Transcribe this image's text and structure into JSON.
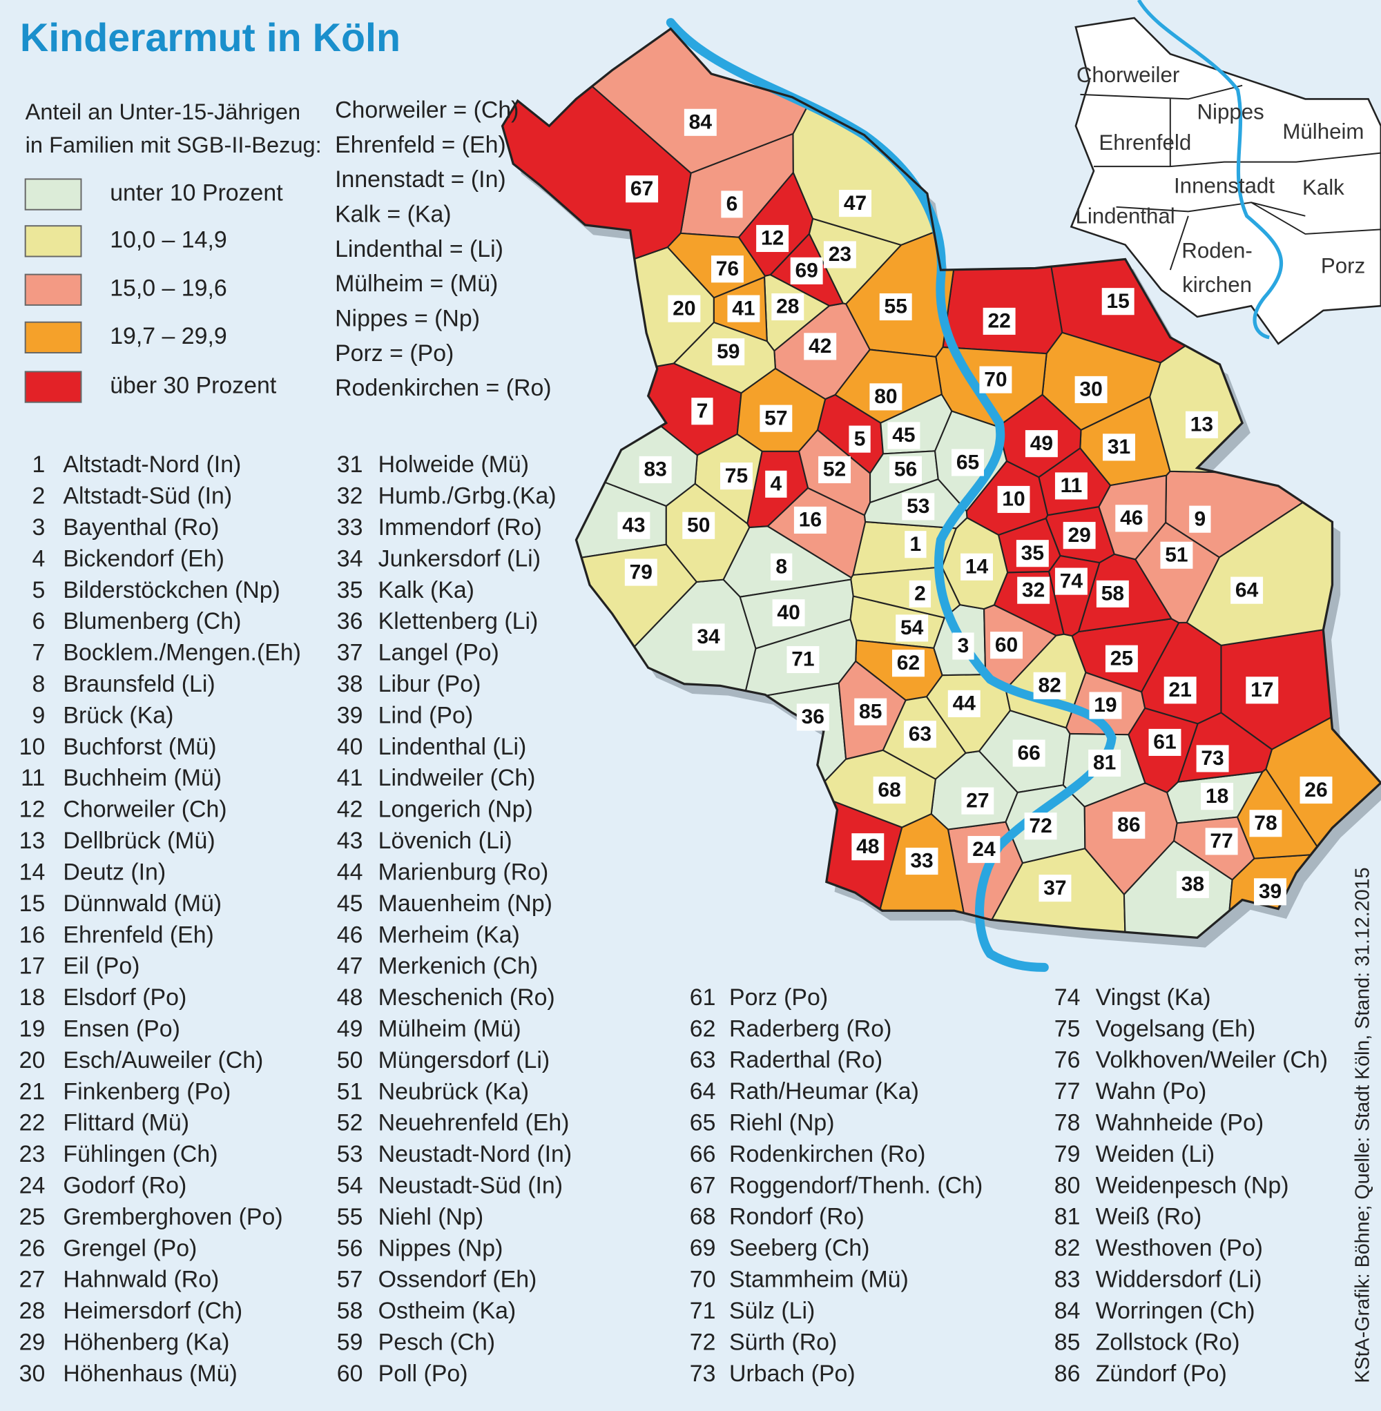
{
  "title": "Kinderarmut in Köln",
  "legend": {
    "heading": [
      "Anteil an Unter-15-Jährigen",
      "in Familien mit SGB-II-Bezug:"
    ],
    "items": [
      {
        "label": "unter 10 Prozent",
        "color": "#dcecd8"
      },
      {
        "label": "10,0 – 14,9",
        "color": "#ece79a"
      },
      {
        "label": "15,0 – 19,6",
        "color": "#f39a84"
      },
      {
        "label": "19,7 – 29,9",
        "color": "#f5a12a"
      },
      {
        "label": "über 30 Prozent",
        "color": "#e32227"
      }
    ]
  },
  "abbreviations": [
    "Chorweiler = (Ch)",
    "Ehrenfeld = (Eh)",
    "Innenstadt = (In)",
    "Kalk = (Ka)",
    "Lindenthal = (Li)",
    "Mülheim = (Mü)",
    "Nippes = (Np)",
    "Porz = (Po)",
    "Rodenkirchen = (Ro)"
  ],
  "districts": [
    {
      "number": 1,
      "name": "Altstadt-Nord (In)",
      "color": "#ece79a"
    },
    {
      "number": 2,
      "name": "Altstadt-Süd (In)",
      "color": "#ece79a"
    },
    {
      "number": 3,
      "name": "Bayenthal (Ro)",
      "color": "#dcecd8"
    },
    {
      "number": 4,
      "name": "Bickendorf (Eh)",
      "color": "#e32227"
    },
    {
      "number": 5,
      "name": "Bilderstöckchen (Np)",
      "color": "#e32227"
    },
    {
      "number": 6,
      "name": "Blumenberg (Ch)",
      "color": "#f39a84"
    },
    {
      "number": 7,
      "name": "Bocklem./Mengen.(Eh)",
      "color": "#e32227"
    },
    {
      "number": 8,
      "name": "Braunsfeld (Li)",
      "color": "#dcecd8"
    },
    {
      "number": 9,
      "name": "Brück (Ka)",
      "color": "#f39a84"
    },
    {
      "number": 10,
      "name": "Buchforst (Mü)",
      "color": "#e32227"
    },
    {
      "number": 11,
      "name": "Buchheim (Mü)",
      "color": "#e32227"
    },
    {
      "number": 12,
      "name": "Chorweiler (Ch)",
      "color": "#e32227"
    },
    {
      "number": 13,
      "name": "Dellbrück (Mü)",
      "color": "#ece79a"
    },
    {
      "number": 14,
      "name": "Deutz (In)",
      "color": "#ece79a"
    },
    {
      "number": 15,
      "name": "Dünnwald (Mü)",
      "color": "#e32227"
    },
    {
      "number": 16,
      "name": "Ehrenfeld (Eh)",
      "color": "#f39a84"
    },
    {
      "number": 17,
      "name": "Eil (Po)",
      "color": "#e32227"
    },
    {
      "number": 18,
      "name": "Elsdorf (Po)",
      "color": "#dcecd8"
    },
    {
      "number": 19,
      "name": "Ensen (Po)",
      "color": "#f39a84"
    },
    {
      "number": 20,
      "name": "Esch/Auweiler (Ch)",
      "color": "#ece79a"
    },
    {
      "number": 21,
      "name": "Finkenberg (Po)",
      "color": "#e32227"
    },
    {
      "number": 22,
      "name": "Flittard (Mü)",
      "color": "#e32227"
    },
    {
      "number": 23,
      "name": "Fühlingen (Ch)",
      "color": "#ece79a"
    },
    {
      "number": 24,
      "name": "Godorf (Ro)",
      "color": "#f39a84"
    },
    {
      "number": 25,
      "name": "Gremberghoven (Po)",
      "color": "#e32227"
    },
    {
      "number": 26,
      "name": "Grengel (Po)",
      "color": "#f5a12a"
    },
    {
      "number": 27,
      "name": "Hahnwald (Ro)",
      "color": "#dcecd8"
    },
    {
      "number": 28,
      "name": "Heimersdorf (Ch)",
      "color": "#ece79a"
    },
    {
      "number": 29,
      "name": "Höhenberg (Ka)",
      "color": "#e32227"
    },
    {
      "number": 30,
      "name": "Höhenhaus (Mü)",
      "color": "#f5a12a"
    },
    {
      "number": 31,
      "name": "Holweide (Mü)",
      "color": "#f5a12a"
    },
    {
      "number": 32,
      "name": "Humb./Grbg.(Ka)",
      "color": "#e32227"
    },
    {
      "number": 33,
      "name": "Immendorf (Ro)",
      "color": "#f5a12a"
    },
    {
      "number": 34,
      "name": "Junkersdorf (Li)",
      "color": "#dcecd8"
    },
    {
      "number": 35,
      "name": "Kalk (Ka)",
      "color": "#e32227"
    },
    {
      "number": 36,
      "name": "Klettenberg (Li)",
      "color": "#dcecd8"
    },
    {
      "number": 37,
      "name": "Langel (Po)",
      "color": "#ece79a"
    },
    {
      "number": 38,
      "name": "Libur (Po)",
      "color": "#dcecd8"
    },
    {
      "number": 39,
      "name": "Lind (Po)",
      "color": "#f5a12a"
    },
    {
      "number": 40,
      "name": "Lindenthal (Li)",
      "color": "#dcecd8"
    },
    {
      "number": 41,
      "name": "Lindweiler (Ch)",
      "color": "#f5a12a"
    },
    {
      "number": 42,
      "name": "Longerich (Np)",
      "color": "#f39a84"
    },
    {
      "number": 43,
      "name": "Lövenich (Li)",
      "color": "#dcecd8"
    },
    {
      "number": 44,
      "name": "Marienburg (Ro)",
      "color": "#ece79a"
    },
    {
      "number": 45,
      "name": "Mauenheim (Np)",
      "color": "#dcecd8"
    },
    {
      "number": 46,
      "name": "Merheim (Ka)",
      "color": "#f39a84"
    },
    {
      "number": 47,
      "name": "Merkenich (Ch)",
      "color": "#ece79a"
    },
    {
      "number": 48,
      "name": "Meschenich (Ro)",
      "color": "#e32227"
    },
    {
      "number": 49,
      "name": "Mülheim (Mü)",
      "color": "#e32227"
    },
    {
      "number": 50,
      "name": "Müngersdorf (Li)",
      "color": "#ece79a"
    },
    {
      "number": 51,
      "name": "Neubrück (Ka)",
      "color": "#f39a84"
    },
    {
      "number": 52,
      "name": "Neuehrenfeld (Eh)",
      "color": "#f39a84"
    },
    {
      "number": 53,
      "name": "Neustadt-Nord (In)",
      "color": "#dcecd8"
    },
    {
      "number": 54,
      "name": "Neustadt-Süd (In)",
      "color": "#ece79a"
    },
    {
      "number": 55,
      "name": "Niehl (Np)",
      "color": "#f5a12a"
    },
    {
      "number": 56,
      "name": "Nippes (Np)",
      "color": "#dcecd8"
    },
    {
      "number": 57,
      "name": "Ossendorf (Eh)",
      "color": "#f5a12a"
    },
    {
      "number": 58,
      "name": "Ostheim (Ka)",
      "color": "#e32227"
    },
    {
      "number": 59,
      "name": "Pesch (Ch)",
      "color": "#ece79a"
    },
    {
      "number": 60,
      "name": "Poll (Po)",
      "color": "#f39a84"
    },
    {
      "number": 61,
      "name": "Porz (Po)",
      "color": "#e32227"
    },
    {
      "number": 62,
      "name": "Raderberg (Ro)",
      "color": "#f5a12a"
    },
    {
      "number": 63,
      "name": "Raderthal (Ro)",
      "color": "#ece79a"
    },
    {
      "number": 64,
      "name": "Rath/Heumar (Ka)",
      "color": "#ece79a"
    },
    {
      "number": 65,
      "name": "Riehl (Np)",
      "color": "#dcecd8"
    },
    {
      "number": 66,
      "name": "Rodenkirchen (Ro)",
      "color": "#dcecd8"
    },
    {
      "number": 67,
      "name": "Roggendorf/Thenh. (Ch)",
      "color": "#e32227"
    },
    {
      "number": 68,
      "name": "Rondorf (Ro)",
      "color": "#ece79a"
    },
    {
      "number": 69,
      "name": "Seeberg (Ch)",
      "color": "#e32227"
    },
    {
      "number": 70,
      "name": "Stammheim (Mü)",
      "color": "#f5a12a"
    },
    {
      "number": 71,
      "name": "Sülz (Li)",
      "color": "#dcecd8"
    },
    {
      "number": 72,
      "name": "Sürth (Ro)",
      "color": "#dcecd8"
    },
    {
      "number": 73,
      "name": "Urbach (Po)",
      "color": "#e32227"
    },
    {
      "number": 74,
      "name": "Vingst (Ka)",
      "color": "#e32227"
    },
    {
      "number": 75,
      "name": "Vogelsang (Eh)",
      "color": "#ece79a"
    },
    {
      "number": 76,
      "name": "Volkhoven/Weiler (Ch)",
      "color": "#f5a12a"
    },
    {
      "number": 77,
      "name": "Wahn (Po)",
      "color": "#f39a84"
    },
    {
      "number": 78,
      "name": "Wahnheide (Po)",
      "color": "#f5a12a"
    },
    {
      "number": 79,
      "name": "Weiden (Li)",
      "color": "#ece79a"
    },
    {
      "number": 80,
      "name": "Weidenpesch (Np)",
      "color": "#f5a12a"
    },
    {
      "number": 81,
      "name": "Weiß (Ro)",
      "color": "#dcecd8"
    },
    {
      "number": 82,
      "name": "Westhoven (Po)",
      "color": "#ece79a"
    },
    {
      "number": 83,
      "name": "Widdersdorf (Li)",
      "color": "#dcecd8"
    },
    {
      "number": 84,
      "name": "Worringen (Ch)",
      "color": "#f39a84"
    },
    {
      "number": 85,
      "name": "Zollstock (Ro)",
      "color": "#f39a84"
    },
    {
      "number": 86,
      "name": "Zündorf (Po)",
      "color": "#f39a84"
    }
  ],
  "inset_labels": [
    [
      "Chorweiler"
    ],
    [
      "Nippes"
    ],
    [
      "Mülheim"
    ],
    [
      "Ehrenfeld"
    ],
    [
      "Innenstadt"
    ],
    [
      "Kalk"
    ],
    [
      "Lindenthal"
    ],
    [
      "Roden-",
      "kirchen"
    ],
    [
      "Porz"
    ]
  ],
  "credit": "KStA-Grafik: Böhne; Quelle: Stadt Köln, Stand: 31.12.2015"
}
